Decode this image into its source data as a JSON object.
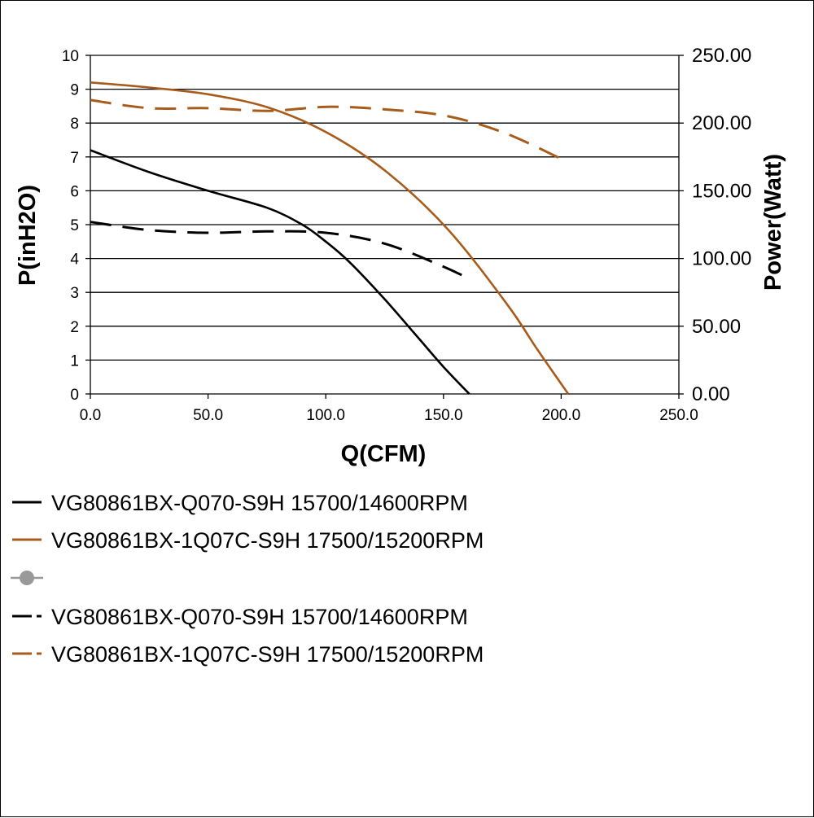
{
  "chart_data": {
    "type": "line",
    "xlabel": "Q(CFM)",
    "ylabel": "P(inH2O)",
    "y2label": "Power(Watt)",
    "xlim": [
      0,
      250
    ],
    "ylim": [
      0,
      10
    ],
    "y2lim": [
      0,
      250
    ],
    "x_ticks": [
      "0.0",
      "50.0",
      "100.0",
      "150.0",
      "200.0",
      "250.0"
    ],
    "y_ticks": [
      "0",
      "1",
      "2",
      "3",
      "4",
      "5",
      "6",
      "7",
      "8",
      "9",
      "10"
    ],
    "y2_ticks": [
      "0.00",
      "50.00",
      "100.00",
      "150.00",
      "200.00",
      "250.00"
    ],
    "grid": "horizontal",
    "legend_position": "bottom",
    "series": [
      {
        "name": "VG80861BX-Q070-S9H 15700/14600RPM",
        "axis": "left",
        "style": "solid",
        "color": "#000000",
        "x": [
          0,
          25,
          50,
          75,
          90,
          100,
          110,
          125,
          140,
          150,
          161
        ],
        "y": [
          7.2,
          6.55,
          6.0,
          5.5,
          5.0,
          4.5,
          3.9,
          2.8,
          1.6,
          0.8,
          0
        ]
      },
      {
        "name": "VG80861BX-1Q07C-S9H 17500/15200RPM",
        "axis": "left",
        "style": "solid",
        "color": "#a85c1c",
        "x": [
          0,
          25,
          50,
          76,
          101,
          126,
          152,
          177,
          190,
          203
        ],
        "y": [
          9.2,
          9.05,
          8.85,
          8.45,
          7.7,
          6.55,
          4.85,
          2.65,
          1.3,
          0
        ]
      },
      {
        "name": "",
        "axis": "left",
        "style": "marker",
        "color": "#999999",
        "x": [],
        "y": []
      },
      {
        "name": "VG80861BX-Q070-S9H 15700/14600RPM",
        "axis": "right",
        "style": "dashed",
        "color": "#000000",
        "x": [
          0,
          25,
          50,
          75,
          100,
          125,
          150,
          162
        ],
        "y": [
          127,
          121,
          119,
          120,
          119,
          111,
          94,
          84
        ]
      },
      {
        "name": "VG80861BX-1Q07C-S9H 17500/15200RPM",
        "axis": "right",
        "style": "dashed",
        "color": "#a85c1c",
        "x": [
          0,
          25,
          50,
          76,
          101,
          126,
          152,
          177,
          203
        ],
        "y": [
          217,
          211,
          211,
          209,
          212,
          210,
          205,
          192,
          171
        ]
      }
    ]
  }
}
